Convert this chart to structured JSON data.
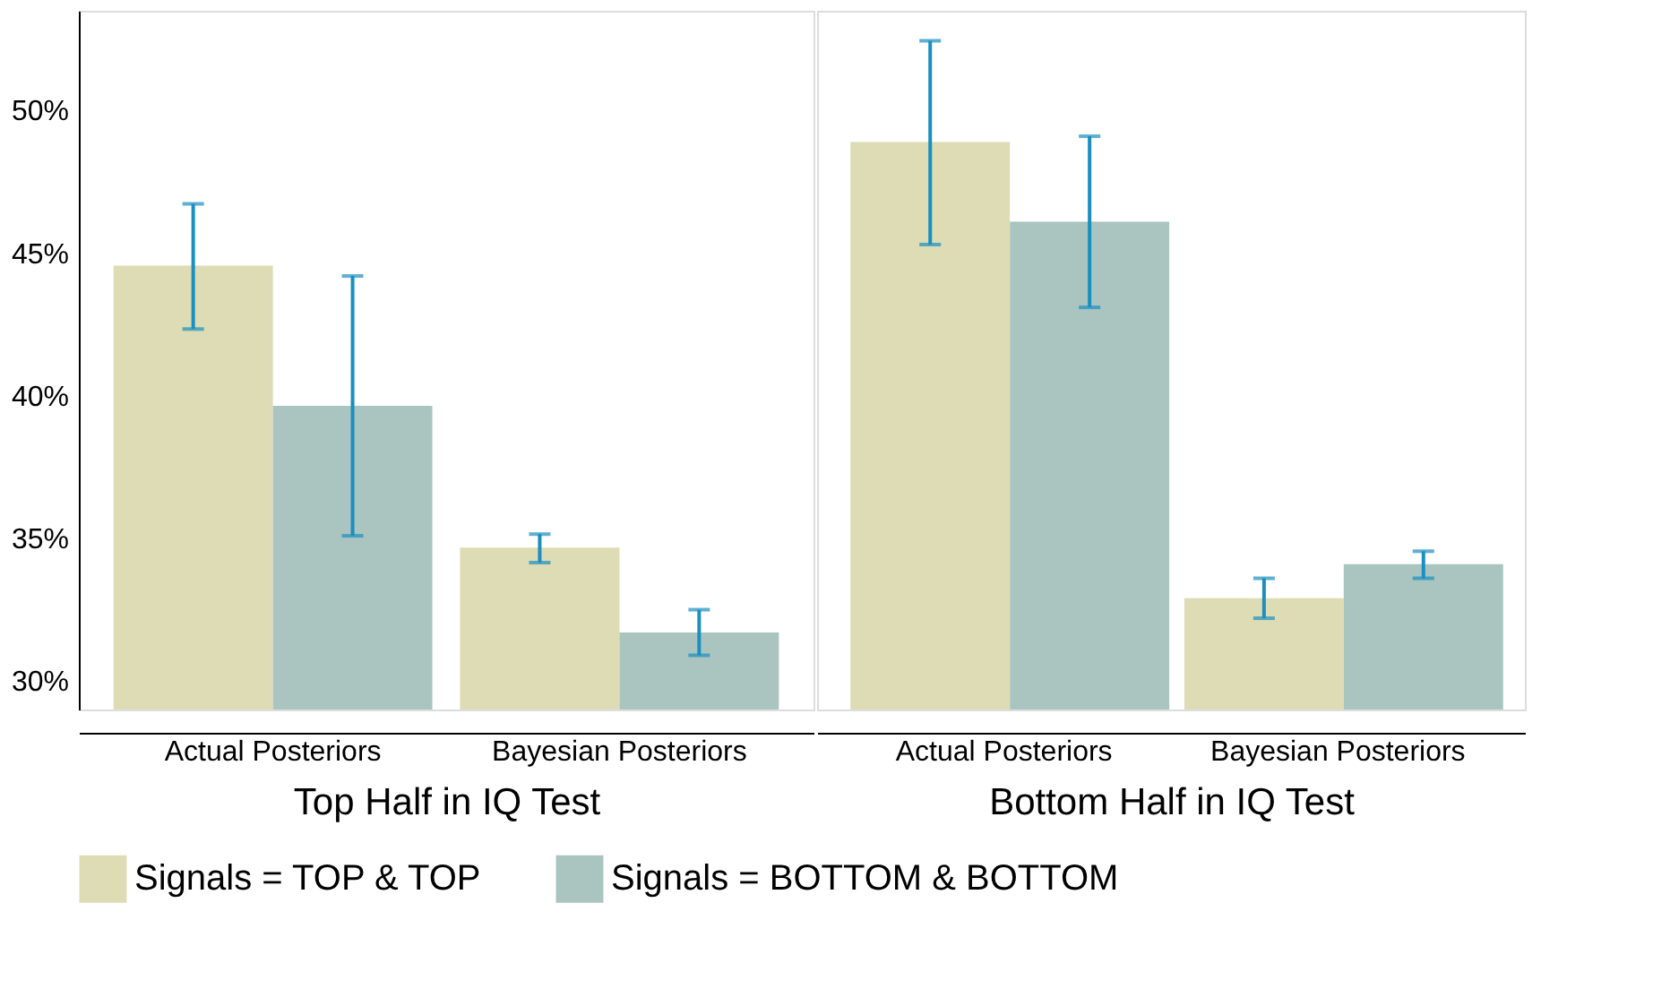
{
  "chart_data": [
    {
      "type": "bar",
      "xlabel": "Top Half in IQ Test",
      "categories": [
        "Actual Posteriors",
        "Bayesian Posteriors"
      ],
      "ylim": [
        29,
        53.5
      ],
      "yticks": [
        {
          "value": 30,
          "label": "30%"
        },
        {
          "value": 35,
          "label": "35%"
        },
        {
          "value": 40,
          "label": "40%"
        },
        {
          "value": 45,
          "label": "45%"
        },
        {
          "value": 50,
          "label": "50%"
        }
      ],
      "legend": "bottom",
      "grid": false,
      "series": [
        {
          "name": "Signals = TOP & TOP",
          "color": "#dddcb5",
          "values": [
            44.56,
            34.68
          ],
          "errors": [
            [
              42.34,
              46.73
            ],
            [
              34.15,
              35.15
            ]
          ]
        },
        {
          "name": "Signals = BOTTOM & BOTTOM",
          "color": "#aac5c0",
          "values": [
            39.65,
            31.7
          ],
          "errors": [
            [
              35.09,
              44.2
            ],
            [
              30.9,
              32.5
            ]
          ]
        }
      ]
    },
    {
      "type": "bar",
      "xlabel": "Bottom Half in IQ Test",
      "categories": [
        "Actual Posteriors",
        "Bayesian Posteriors"
      ],
      "ylim": [
        29,
        53.5
      ],
      "tick_labels": "x",
      "grid": false,
      "series": [
        {
          "name": "Signals = TOP & TOP",
          "color": "#dddcb5",
          "values": [
            48.9,
            32.9
          ],
          "errors": [
            [
              45.3,
              52.45
            ],
            [
              32.2,
              33.6
            ]
          ]
        },
        {
          "name": "Signals = BOTTOM & BOTTOM",
          "color": "#aac5c0",
          "values": [
            46.1,
            34.1
          ],
          "errors": [
            [
              43.1,
              49.1
            ],
            [
              33.6,
              34.55
            ]
          ]
        }
      ]
    }
  ]
}
